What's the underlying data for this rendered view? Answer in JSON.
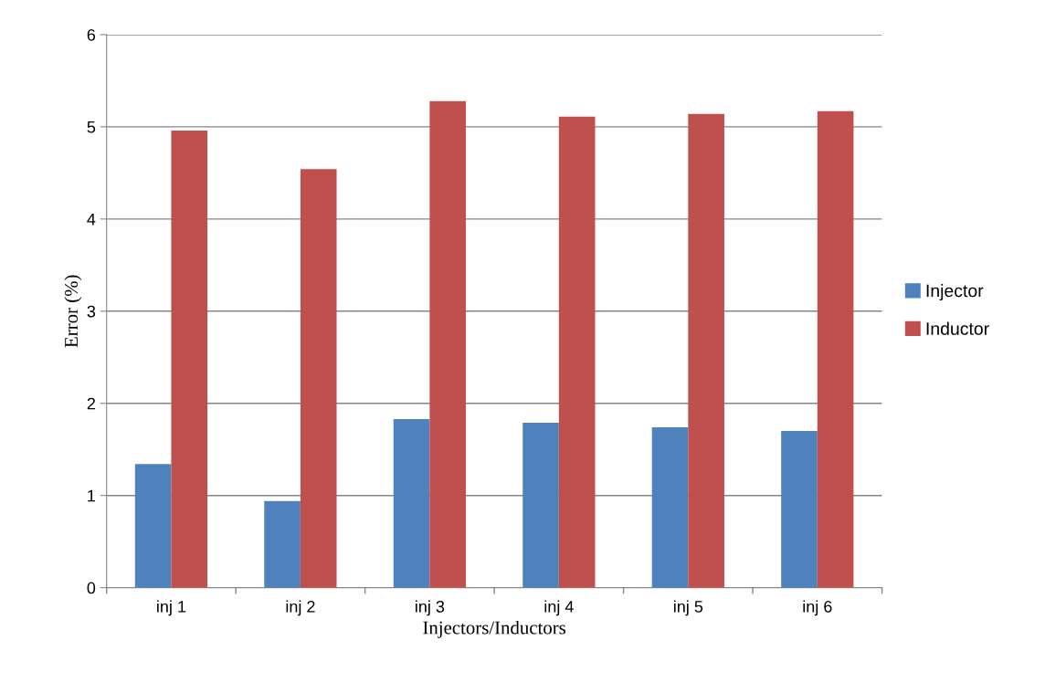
{
  "chart_data": {
    "type": "bar",
    "xlabel": "Injectors/Inductors",
    "ylabel": "Error (%)",
    "categories": [
      "inj 1",
      "inj 2",
      "inj 3",
      "inj 4",
      "inj 5",
      "inj 6"
    ],
    "series": [
      {
        "name": "Injector",
        "color": "#4f81bd",
        "values": [
          1.34,
          0.94,
          1.83,
          1.79,
          1.74,
          1.7
        ]
      },
      {
        "name": "Inductor",
        "color": "#c0504d",
        "values": [
          4.96,
          4.54,
          5.28,
          5.11,
          5.14,
          5.17
        ]
      }
    ],
    "ylim": [
      0,
      6
    ],
    "yticks": [
      0,
      1,
      2,
      3,
      4,
      5,
      6
    ],
    "grid": "y",
    "legend": "right"
  }
}
